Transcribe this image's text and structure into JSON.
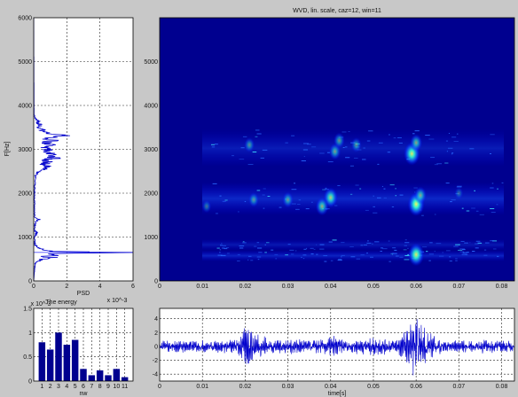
{
  "colors": {
    "figure_bg": "#c8c8c8",
    "axes_bg": "#ffffff",
    "plot_blue": "#0000cc",
    "jet_dark": "#00008f",
    "jet_blue": "#0000ff",
    "jet_cyan": "#00ffff",
    "jet_yellow": "#ffff00",
    "psd_marker": "#5555ff"
  },
  "chart_data": [
    {
      "id": "psd",
      "type": "line",
      "orientation": "horizontal",
      "title": "",
      "xlabel": "PSD",
      "ylabel": "F[Hz]",
      "x_exponent_label": "x 10^-3",
      "xlim": [
        0,
        6
      ],
      "ylim": [
        0,
        6000
      ],
      "xticks": [
        "0",
        "2",
        "4",
        "6"
      ],
      "yticks": [
        "0",
        "1000",
        "2000",
        "3000",
        "4000",
        "5000",
        "6000"
      ],
      "grid": true,
      "series": [
        {
          "points": [
            {
              "f": 0,
              "psd": 0
            },
            {
              "f": 400,
              "psd": 0.08
            },
            {
              "f": 480,
              "psd": 0.4
            },
            {
              "f": 530,
              "psd": 1.2
            },
            {
              "f": 560,
              "psd": 0.5
            },
            {
              "f": 590,
              "psd": 1.6
            },
            {
              "f": 620,
              "psd": 0.9
            },
            {
              "f": 650,
              "psd": 5.8
            },
            {
              "f": 670,
              "psd": 1.0
            },
            {
              "f": 700,
              "psd": 0.6
            },
            {
              "f": 730,
              "psd": 0.4
            },
            {
              "f": 780,
              "psd": 0.2
            },
            {
              "f": 830,
              "psd": 0.08
            },
            {
              "f": 1000,
              "psd": 0.05
            },
            {
              "f": 1100,
              "psd": 0.2
            },
            {
              "f": 1150,
              "psd": 0.05
            },
            {
              "f": 1350,
              "psd": 0.1
            },
            {
              "f": 1400,
              "psd": 0.3
            },
            {
              "f": 1450,
              "psd": 0.05
            },
            {
              "f": 1700,
              "psd": 0.05
            },
            {
              "f": 2000,
              "psd": 0.05
            },
            {
              "f": 2400,
              "psd": 0.1
            },
            {
              "f": 2500,
              "psd": 0.3
            },
            {
              "f": 2550,
              "psd": 0.6
            },
            {
              "f": 2600,
              "psd": 0.9
            },
            {
              "f": 2650,
              "psd": 0.5
            },
            {
              "f": 2700,
              "psd": 1.0
            },
            {
              "f": 2750,
              "psd": 0.6
            },
            {
              "f": 2800,
              "psd": 1.4
            },
            {
              "f": 2850,
              "psd": 0.8
            },
            {
              "f": 2900,
              "psd": 1.3
            },
            {
              "f": 2950,
              "psd": 0.7
            },
            {
              "f": 3000,
              "psd": 0.9
            },
            {
              "f": 3050,
              "psd": 0.6
            },
            {
              "f": 3100,
              "psd": 1.0
            },
            {
              "f": 3150,
              "psd": 0.7
            },
            {
              "f": 3200,
              "psd": 1.1
            },
            {
              "f": 3250,
              "psd": 0.8
            },
            {
              "f": 3300,
              "psd": 2.3
            },
            {
              "f": 3350,
              "psd": 0.9
            },
            {
              "f": 3400,
              "psd": 0.5
            },
            {
              "f": 3450,
              "psd": 0.6
            },
            {
              "f": 3500,
              "psd": 0.3
            },
            {
              "f": 3550,
              "psd": 0.5
            },
            {
              "f": 3600,
              "psd": 0.2
            },
            {
              "f": 3650,
              "psd": 0.3
            },
            {
              "f": 3700,
              "psd": 0.1
            },
            {
              "f": 3800,
              "psd": 0.02
            },
            {
              "f": 6000,
              "psd": 0
            }
          ]
        }
      ],
      "marker_line": {
        "f": 650
      }
    },
    {
      "id": "wvd",
      "type": "heatmap",
      "title": "WVD, lin. scale, caz=12, win=11",
      "xlabel": "",
      "ylabel": "",
      "xlim": [
        0,
        0.083
      ],
      "ylim": [
        0,
        6000
      ],
      "xticks": [
        "0",
        "0.01",
        "0.02",
        "0.03",
        "0.04",
        "0.05",
        "0.06",
        "0.07",
        "0.08"
      ],
      "yticks": [
        "0",
        "1000",
        "2000",
        "3000",
        "4000",
        "5000"
      ],
      "grid": false,
      "bands": [
        {
          "f_low": 450,
          "f_high": 700,
          "intensity": 0.45
        },
        {
          "f_low": 700,
          "f_high": 950,
          "intensity": 0.3
        },
        {
          "f_low": 1500,
          "f_high": 2250,
          "intensity": 0.5
        },
        {
          "f_low": 2600,
          "f_high": 3450,
          "intensity": 0.35
        }
      ],
      "hotspots": [
        {
          "t": 0.059,
          "f": 2900,
          "intensity": 0.9
        },
        {
          "t": 0.06,
          "f": 3150,
          "intensity": 0.6
        },
        {
          "t": 0.06,
          "f": 1750,
          "intensity": 0.95
        },
        {
          "t": 0.061,
          "f": 1950,
          "intensity": 0.6
        },
        {
          "t": 0.04,
          "f": 1900,
          "intensity": 0.75
        },
        {
          "t": 0.038,
          "f": 1700,
          "intensity": 0.65
        },
        {
          "t": 0.041,
          "f": 2950,
          "intensity": 0.55
        },
        {
          "t": 0.042,
          "f": 3200,
          "intensity": 0.5
        },
        {
          "t": 0.03,
          "f": 1850,
          "intensity": 0.5
        },
        {
          "t": 0.022,
          "f": 1850,
          "intensity": 0.45
        },
        {
          "t": 0.021,
          "f": 3100,
          "intensity": 0.45
        },
        {
          "t": 0.046,
          "f": 3100,
          "intensity": 0.45
        },
        {
          "t": 0.06,
          "f": 600,
          "intensity": 0.9
        },
        {
          "t": 0.011,
          "f": 1700,
          "intensity": 0.35
        },
        {
          "t": 0.07,
          "f": 2000,
          "intensity": 0.3
        }
      ]
    },
    {
      "id": "energy",
      "type": "bar",
      "title": "The energy",
      "xlabel": "nw",
      "ylabel": "",
      "y_exponent_label": "x 10^-3",
      "categories": [
        "1",
        "2",
        "3",
        "4",
        "5",
        "6",
        "7",
        "8",
        "9",
        "10",
        "11"
      ],
      "values": [
        0.8,
        0.65,
        1.0,
        0.75,
        0.85,
        0.25,
        0.12,
        0.22,
        0.12,
        0.25,
        0.08
      ],
      "ylim": [
        0,
        1.5
      ],
      "yticks": [
        "0",
        "0.5",
        "1",
        "1.5"
      ],
      "grid": true
    },
    {
      "id": "signal",
      "type": "line",
      "title": "",
      "xlabel": "time[s]",
      "ylabel": "",
      "xlim": [
        0,
        0.083
      ],
      "ylim": [
        -5,
        5.5
      ],
      "xticks": [
        "0",
        "0.01",
        "0.02",
        "0.03",
        "0.04",
        "0.05",
        "0.06",
        "0.07",
        "0.08"
      ],
      "yticks": [
        "-4",
        "-2",
        "0",
        "2",
        "4"
      ],
      "grid": true,
      "envelope": [
        {
          "t": 0,
          "a": 0.8
        },
        {
          "t": 0.008,
          "a": 0.9
        },
        {
          "t": 0.012,
          "a": 0.8
        },
        {
          "t": 0.018,
          "a": 1.0
        },
        {
          "t": 0.0205,
          "a": 3.0
        },
        {
          "t": 0.023,
          "a": 1.8
        },
        {
          "t": 0.027,
          "a": 0.9
        },
        {
          "t": 0.031,
          "a": 1.2
        },
        {
          "t": 0.035,
          "a": 0.9
        },
        {
          "t": 0.039,
          "a": 1.2
        },
        {
          "t": 0.041,
          "a": 1.6
        },
        {
          "t": 0.045,
          "a": 1.0
        },
        {
          "t": 0.05,
          "a": 1.2
        },
        {
          "t": 0.055,
          "a": 1.0
        },
        {
          "t": 0.058,
          "a": 2.5
        },
        {
          "t": 0.0595,
          "a": 4.2
        },
        {
          "t": 0.061,
          "a": 3.5
        },
        {
          "t": 0.063,
          "a": 2.0
        },
        {
          "t": 0.066,
          "a": 1.0
        },
        {
          "t": 0.07,
          "a": 0.8
        },
        {
          "t": 0.076,
          "a": 1.1
        },
        {
          "t": 0.083,
          "a": 0.7
        }
      ]
    }
  ]
}
